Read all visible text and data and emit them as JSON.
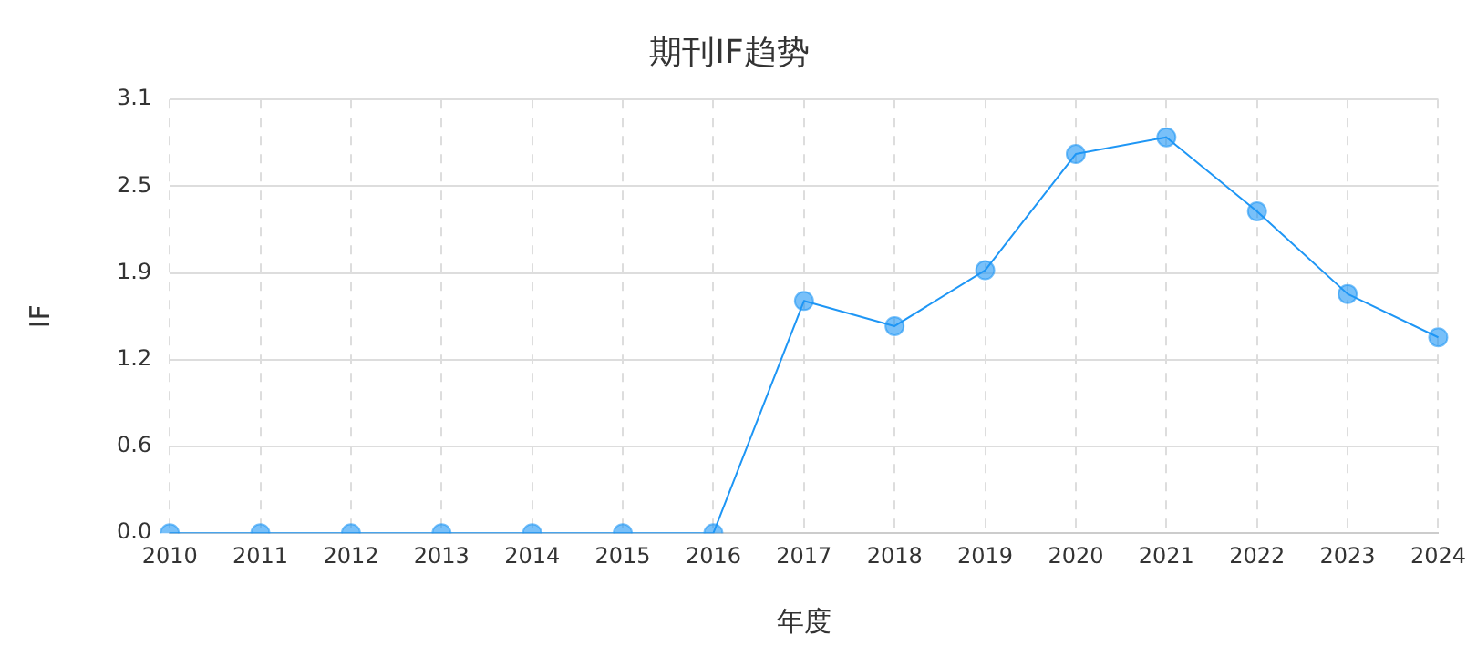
{
  "chart_data": {
    "type": "line",
    "title": "期刊IF趋势",
    "xlabel": "年度",
    "ylabel": "IF",
    "categories": [
      "2010",
      "2011",
      "2012",
      "2013",
      "2014",
      "2015",
      "2016",
      "2017",
      "2018",
      "2019",
      "2020",
      "2021",
      "2022",
      "2023",
      "2024"
    ],
    "series": [
      {
        "color": "#1e96f5",
        "values": [
          0,
          0,
          0,
          0,
          0,
          0,
          0,
          1.66,
          1.48,
          1.88,
          2.71,
          2.83,
          2.3,
          1.71,
          1.4
        ]
      }
    ],
    "ylim": [
      0,
      3.1
    ],
    "yticks": [
      {
        "value": 0,
        "label": "0.0"
      },
      {
        "value": 0.62,
        "label": "0.6"
      },
      {
        "value": 1.24,
        "label": "1.2"
      },
      {
        "value": 1.86,
        "label": "1.9"
      },
      {
        "value": 2.48,
        "label": "2.5"
      },
      3.1
    ],
    "grid": true,
    "marker": "circle",
    "line_style": "solid",
    "legend": false
  }
}
